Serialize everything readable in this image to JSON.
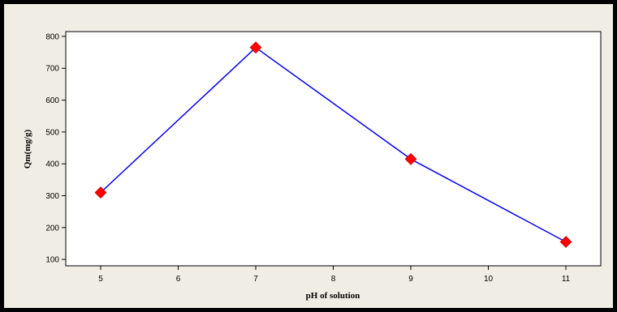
{
  "chart_data": {
    "type": "line",
    "title": "",
    "xlabel": "pH of solution",
    "ylabel": "Qm(mg/g)",
    "x_ticks": [
      5,
      6,
      7,
      8,
      9,
      10,
      11
    ],
    "y_ticks": [
      100,
      200,
      300,
      400,
      500,
      600,
      700,
      800
    ],
    "xlim": [
      4.55,
      11.45
    ],
    "ylim": [
      80,
      815
    ],
    "grid": false,
    "series": [
      {
        "x": [
          5,
          7,
          9,
          11
        ],
        "y": [
          310,
          765,
          415,
          155
        ]
      }
    ],
    "colors": {
      "line": "#0000ff",
      "marker": "#ff0000",
      "background": "#f0ede4",
      "frame": "#000000",
      "plot_area": "#ffffff"
    }
  }
}
